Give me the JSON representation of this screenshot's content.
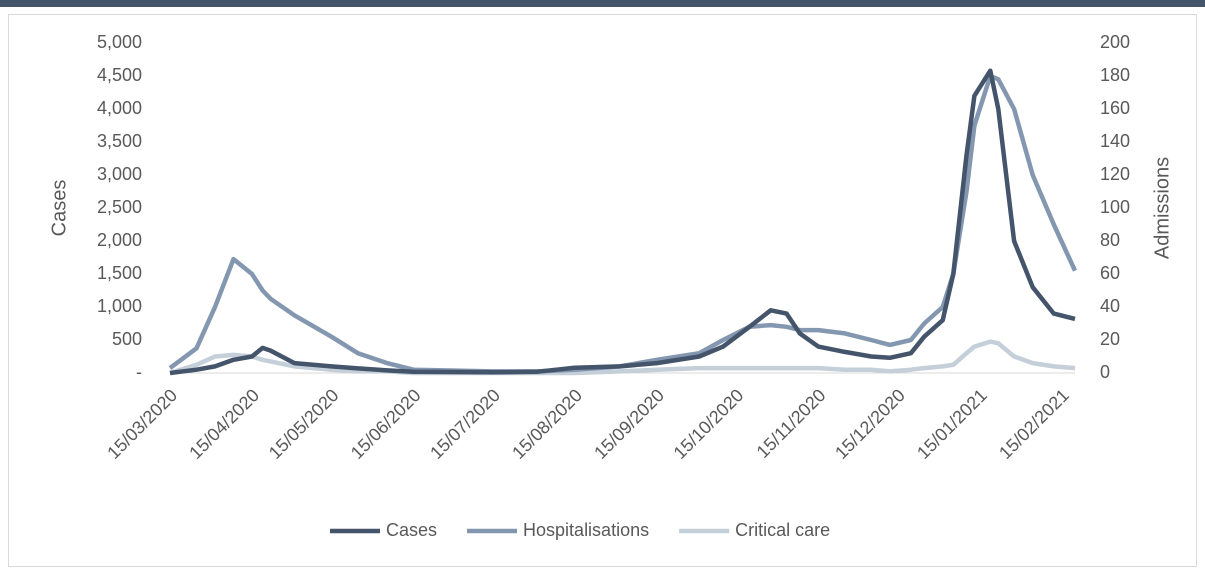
{
  "chart_data": {
    "type": "line",
    "x": [
      "15/03/2020",
      "25/03/2020",
      "01/04/2020",
      "08/04/2020",
      "15/04/2020",
      "19/04/2020",
      "22/04/2020",
      "01/05/2020",
      "15/05/2020",
      "25/05/2020",
      "05/06/2020",
      "15/06/2020",
      "15/07/2020",
      "01/08/2020",
      "15/08/2020",
      "01/09/2020",
      "15/09/2020",
      "01/10/2020",
      "10/10/2020",
      "20/10/2020",
      "28/10/2020",
      "03/11/2020",
      "08/11/2020",
      "15/11/2020",
      "25/11/2020",
      "05/12/2020",
      "12/12/2020",
      "20/12/2020",
      "25/12/2020",
      "01/01/2021",
      "05/01/2021",
      "10/01/2021",
      "13/01/2021",
      "19/01/2021",
      "22/01/2021",
      "28/01/2021",
      "04/02/2021",
      "12/02/2021",
      "20/02/2021"
    ],
    "series": [
      {
        "name": "Cases",
        "color": "#44546a",
        "values": [
          0,
          50,
          100,
          200,
          250,
          380,
          340,
          150,
          100,
          70,
          40,
          20,
          10,
          20,
          80,
          100,
          150,
          250,
          400,
          700,
          950,
          900,
          600,
          400,
          320,
          250,
          230,
          300,
          550,
          800,
          1500,
          3300,
          4200,
          4580,
          4000,
          2000,
          1300,
          900,
          820
        ]
      },
      {
        "name": "Hospitalisations",
        "color": "#8497b0",
        "axis": "y2",
        "values": [
          3,
          15,
          40,
          69,
          60,
          50,
          45,
          35,
          22,
          12,
          6,
          2,
          1,
          1,
          2,
          4,
          8,
          12,
          20,
          28,
          29,
          28,
          26,
          26,
          24,
          20,
          17,
          20,
          30,
          40,
          60,
          110,
          150,
          180,
          178,
          160,
          120,
          90,
          62
        ]
      },
      {
        "name": "Critical care",
        "color": "#c4cfd9",
        "axis": "y2",
        "values": [
          0,
          5,
          10,
          11,
          10,
          8,
          7,
          4,
          2,
          1,
          1,
          0,
          0,
          0,
          0,
          1,
          2,
          3,
          3,
          3,
          3,
          3,
          3,
          3,
          2,
          2,
          1,
          2,
          3,
          4,
          5,
          12,
          16,
          19,
          18,
          10,
          6,
          4,
          3
        ]
      }
    ],
    "xlim": [
      "15/03/2020",
      "20/02/2021"
    ],
    "xticks": [
      "15/03/2020",
      "15/04/2020",
      "15/05/2020",
      "15/06/2020",
      "15/07/2020",
      "15/08/2020",
      "15/09/2020",
      "15/10/2020",
      "15/11/2020",
      "15/12/2020",
      "15/01/2021",
      "15/02/2021"
    ],
    "ylabel": "Cases",
    "y2label": "Admissions",
    "ylim": [
      0,
      5000
    ],
    "yticks": [
      {
        "value": 0,
        "label": "-"
      },
      500,
      {
        "value": 1000,
        "label": "1,000"
      },
      {
        "value": 1500,
        "label": "1,500"
      },
      {
        "value": 2000,
        "label": "2,000"
      },
      {
        "value": 2500,
        "label": "2,500"
      },
      {
        "value": 3000,
        "label": "3,000"
      },
      {
        "value": 3500,
        "label": "3,500"
      },
      {
        "value": 4000,
        "label": "4,000"
      },
      {
        "value": 4500,
        "label": "4,500"
      },
      {
        "value": 5000,
        "label": "5,000"
      }
    ],
    "y2lim": [
      0,
      200
    ],
    "y2ticks": [
      0,
      20,
      40,
      60,
      80,
      100,
      120,
      140,
      160,
      180,
      200
    ],
    "legend": "bottom"
  }
}
